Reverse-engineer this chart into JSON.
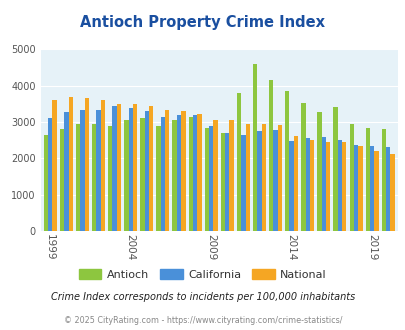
{
  "title": "Antioch Property Crime Index",
  "years": [
    1999,
    2000,
    2001,
    2002,
    2003,
    2004,
    2005,
    2006,
    2007,
    2008,
    2009,
    2010,
    2011,
    2012,
    2013,
    2014,
    2015,
    2016,
    2017,
    2018,
    2019,
    2020
  ],
  "antioch": [
    2650,
    2820,
    2950,
    2950,
    2900,
    3050,
    3100,
    2900,
    3050,
    3150,
    2850,
    2700,
    3800,
    4600,
    4150,
    3850,
    3530,
    3280,
    3420,
    2960,
    2830,
    2800
  ],
  "california": [
    3100,
    3280,
    3330,
    3340,
    3450,
    3380,
    3300,
    3140,
    3200,
    3190,
    2900,
    2700,
    2650,
    2750,
    2780,
    2470,
    2560,
    2600,
    2510,
    2380,
    2350,
    2320
  ],
  "national": [
    3600,
    3680,
    3660,
    3620,
    3500,
    3490,
    3430,
    3340,
    3300,
    3230,
    3050,
    3060,
    2940,
    2940,
    2930,
    2620,
    2510,
    2460,
    2450,
    2330,
    2210,
    2110
  ],
  "antioch_color": "#8dc63f",
  "california_color": "#4a90d9",
  "national_color": "#f5a623",
  "bg_color": "#e6f2f8",
  "ylim": [
    0,
    5000
  ],
  "yticks": [
    0,
    1000,
    2000,
    3000,
    4000,
    5000
  ],
  "xtick_years": [
    1999,
    2004,
    2009,
    2014,
    2019
  ],
  "title_color": "#1a4fa0",
  "title_fontsize": 10.5,
  "legend_labels": [
    "Antioch",
    "California",
    "National"
  ],
  "footnote1": "Crime Index corresponds to incidents per 100,000 inhabitants",
  "footnote2": "© 2025 CityRating.com - https://www.cityrating.com/crime-statistics/",
  "footnote1_color": "#222222",
  "footnote2_color": "#888888",
  "grid_color": "#ffffff",
  "bar_width": 0.27
}
